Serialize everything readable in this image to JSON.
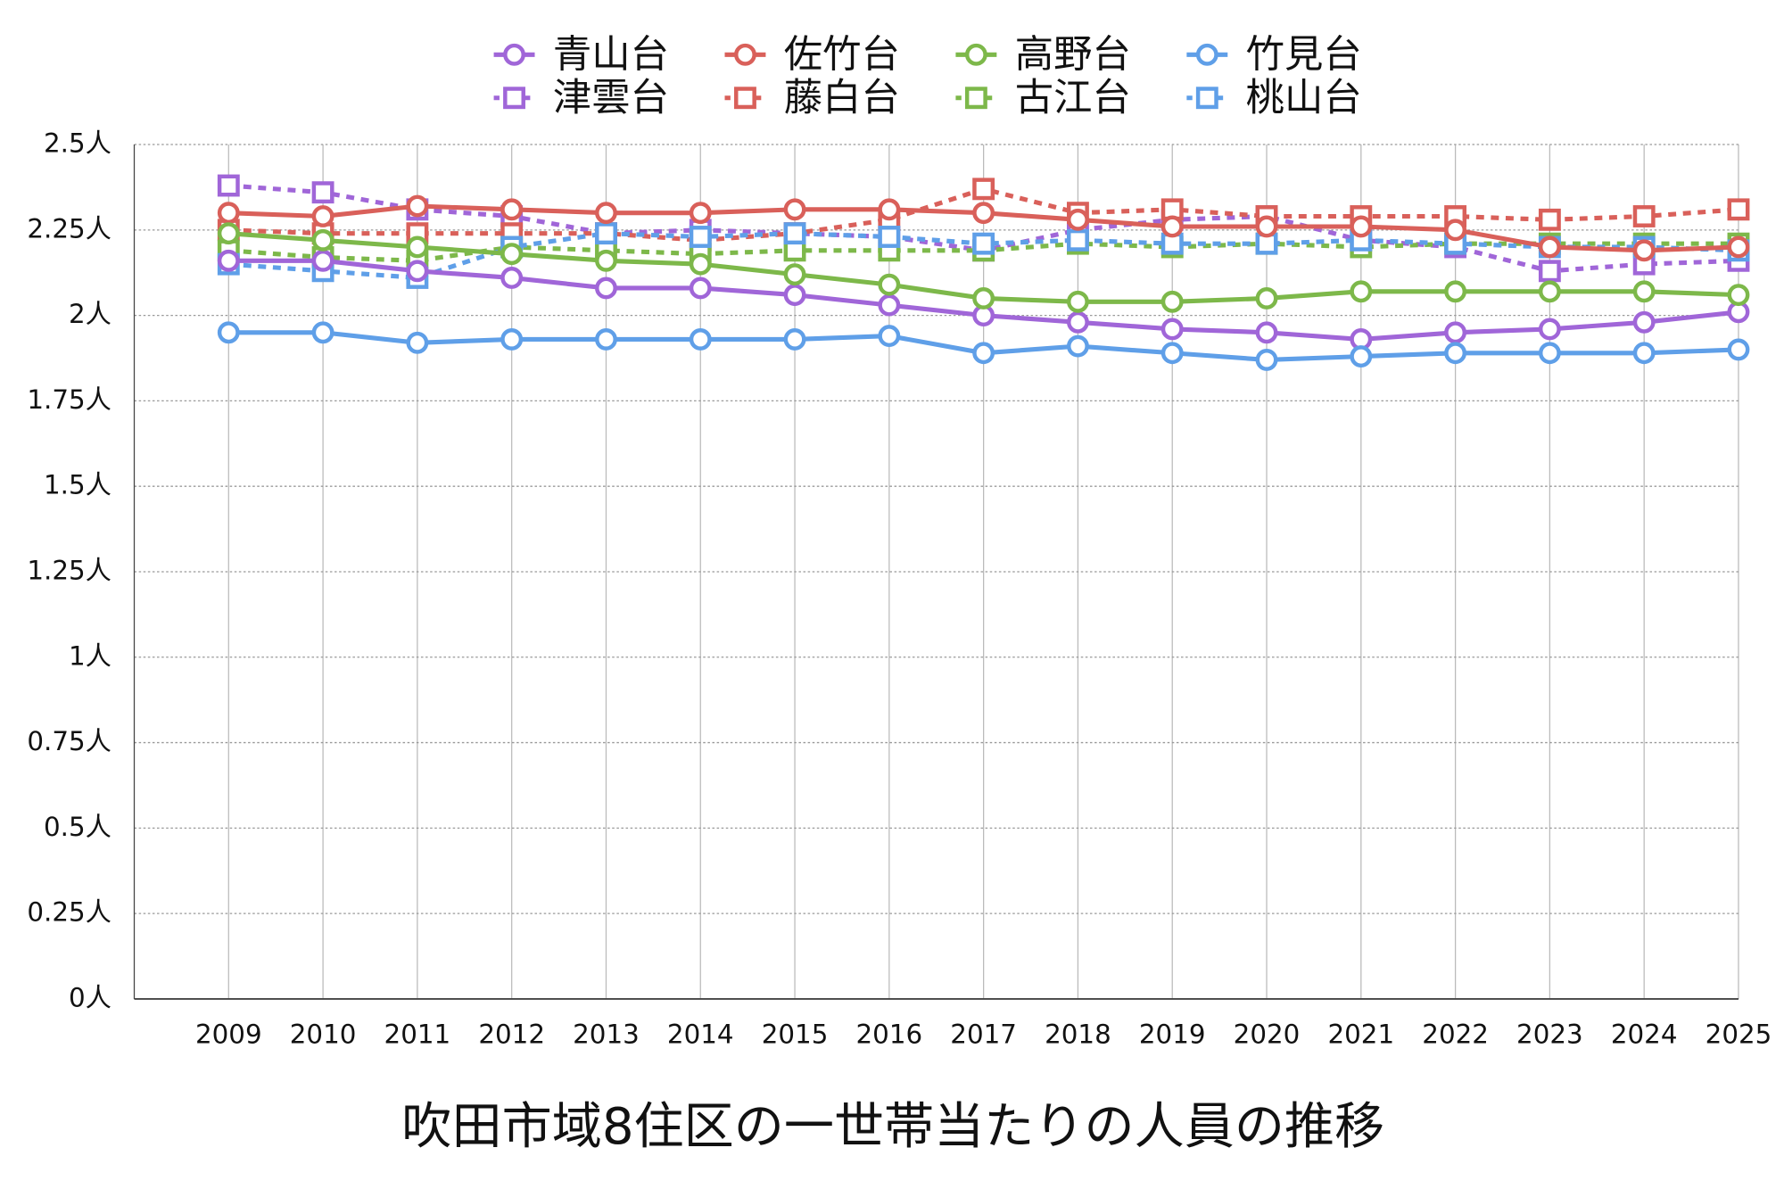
{
  "chart_data": {
    "type": "line",
    "title": "吹田市域8住区の一世帯当たりの人員の推移",
    "categories": [
      "2009",
      "2010",
      "2011",
      "2012",
      "2013",
      "2014",
      "2015",
      "2016",
      "2017",
      "2018",
      "2019",
      "2020",
      "2021",
      "2022",
      "2023",
      "2024",
      "2025"
    ],
    "ylim": [
      0,
      2.5
    ],
    "yticks": [
      {
        "value": 0,
        "label": "0人"
      },
      {
        "value": 0.25,
        "label": "0.25人"
      },
      {
        "value": 0.5,
        "label": "0.5人"
      },
      {
        "value": 0.75,
        "label": "0.75人"
      },
      {
        "value": 1,
        "label": "1人"
      },
      {
        "value": 1.25,
        "label": "1.25人"
      },
      {
        "value": 1.5,
        "label": "1.5人"
      },
      {
        "value": 1.75,
        "label": "1.75人"
      },
      {
        "value": 2,
        "label": "2人"
      },
      {
        "value": 2.25,
        "label": "2.25人"
      },
      {
        "value": 2.5,
        "label": "2.5人"
      }
    ],
    "grid": true,
    "legend": "top",
    "series": [
      {
        "name": "青山台",
        "color": "#a066d8",
        "marker": "circle",
        "line_style": "solid",
        "values": [
          2.16,
          2.16,
          2.13,
          2.11,
          2.08,
          2.08,
          2.06,
          2.03,
          2.0,
          1.98,
          1.96,
          1.95,
          1.93,
          1.95,
          1.96,
          1.98,
          2.01
        ]
      },
      {
        "name": "佐竹台",
        "color": "#d9605a",
        "marker": "circle",
        "line_style": "solid",
        "values": [
          2.3,
          2.29,
          2.32,
          2.31,
          2.3,
          2.3,
          2.31,
          2.31,
          2.3,
          2.28,
          2.26,
          2.26,
          2.26,
          2.25,
          2.2,
          2.19,
          2.2
        ]
      },
      {
        "name": "高野台",
        "color": "#7db84a",
        "marker": "circle",
        "line_style": "solid",
        "values": [
          2.24,
          2.22,
          2.2,
          2.18,
          2.16,
          2.15,
          2.12,
          2.09,
          2.05,
          2.04,
          2.04,
          2.05,
          2.07,
          2.07,
          2.07,
          2.07,
          2.06
        ]
      },
      {
        "name": "竹見台",
        "color": "#5f9fe8",
        "marker": "circle",
        "line_style": "solid",
        "values": [
          1.95,
          1.95,
          1.92,
          1.93,
          1.93,
          1.93,
          1.93,
          1.94,
          1.89,
          1.91,
          1.89,
          1.87,
          1.88,
          1.89,
          1.89,
          1.89,
          1.9
        ]
      },
      {
        "name": "津雲台",
        "color": "#a066d8",
        "marker": "square",
        "line_style": "dashed",
        "values": [
          2.38,
          2.36,
          2.31,
          2.29,
          2.24,
          2.25,
          2.24,
          2.23,
          2.19,
          2.25,
          2.28,
          2.29,
          2.22,
          2.2,
          2.13,
          2.15,
          2.16
        ]
      },
      {
        "name": "藤白台",
        "color": "#d9605a",
        "marker": "square",
        "line_style": "dashed",
        "values": [
          2.25,
          2.24,
          2.24,
          2.24,
          2.24,
          2.22,
          2.24,
          2.28,
          2.37,
          2.3,
          2.31,
          2.29,
          2.29,
          2.29,
          2.28,
          2.29,
          2.31
        ]
      },
      {
        "name": "古江台",
        "color": "#7db84a",
        "marker": "square",
        "line_style": "dashed",
        "values": [
          2.19,
          2.17,
          2.16,
          2.2,
          2.19,
          2.18,
          2.19,
          2.19,
          2.19,
          2.21,
          2.2,
          2.21,
          2.2,
          2.21,
          2.21,
          2.21,
          2.21
        ]
      },
      {
        "name": "桃山台",
        "color": "#5f9fe8",
        "marker": "square",
        "line_style": "dashed",
        "values": [
          2.15,
          2.13,
          2.11,
          2.2,
          2.24,
          2.23,
          2.24,
          2.23,
          2.21,
          2.22,
          2.21,
          2.21,
          2.22,
          2.21,
          2.2,
          2.2,
          2.19
        ]
      }
    ]
  }
}
